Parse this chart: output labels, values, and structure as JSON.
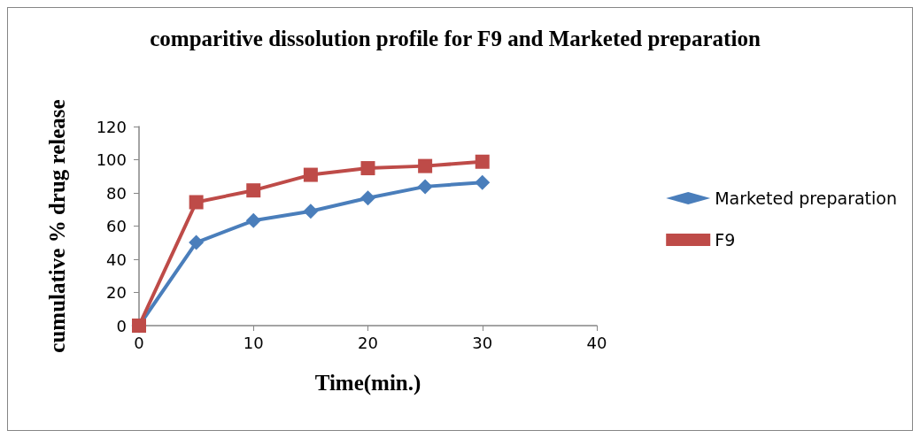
{
  "chart_data": {
    "type": "line",
    "title": "comparitive dissolution profile for F9 and Marketed preparation",
    "xlabel": "Time(min.)",
    "ylabel": "cumulative % drug release",
    "x": [
      0,
      5,
      10,
      15,
      20,
      25,
      30
    ],
    "series": [
      {
        "name": "Marketed preparation",
        "color": "#4a7ebb",
        "marker": "diamond",
        "values": [
          0,
          50.1,
          63.3,
          68.9,
          76.9,
          83.8,
          86.3
        ]
      },
      {
        "name": "F9",
        "color": "#be4b48",
        "marker": "square",
        "values": [
          0,
          74.4,
          81.5,
          90.9,
          94.9,
          96.2,
          98.8
        ]
      }
    ],
    "xlim": [
      0,
      40
    ],
    "xticks": [
      0,
      10,
      20,
      30,
      40
    ],
    "ylim": [
      0,
      120
    ],
    "yticks": [
      0,
      20,
      40,
      60,
      80,
      100,
      120
    ],
    "grid": false,
    "legend": "right",
    "line_style": "solid"
  }
}
